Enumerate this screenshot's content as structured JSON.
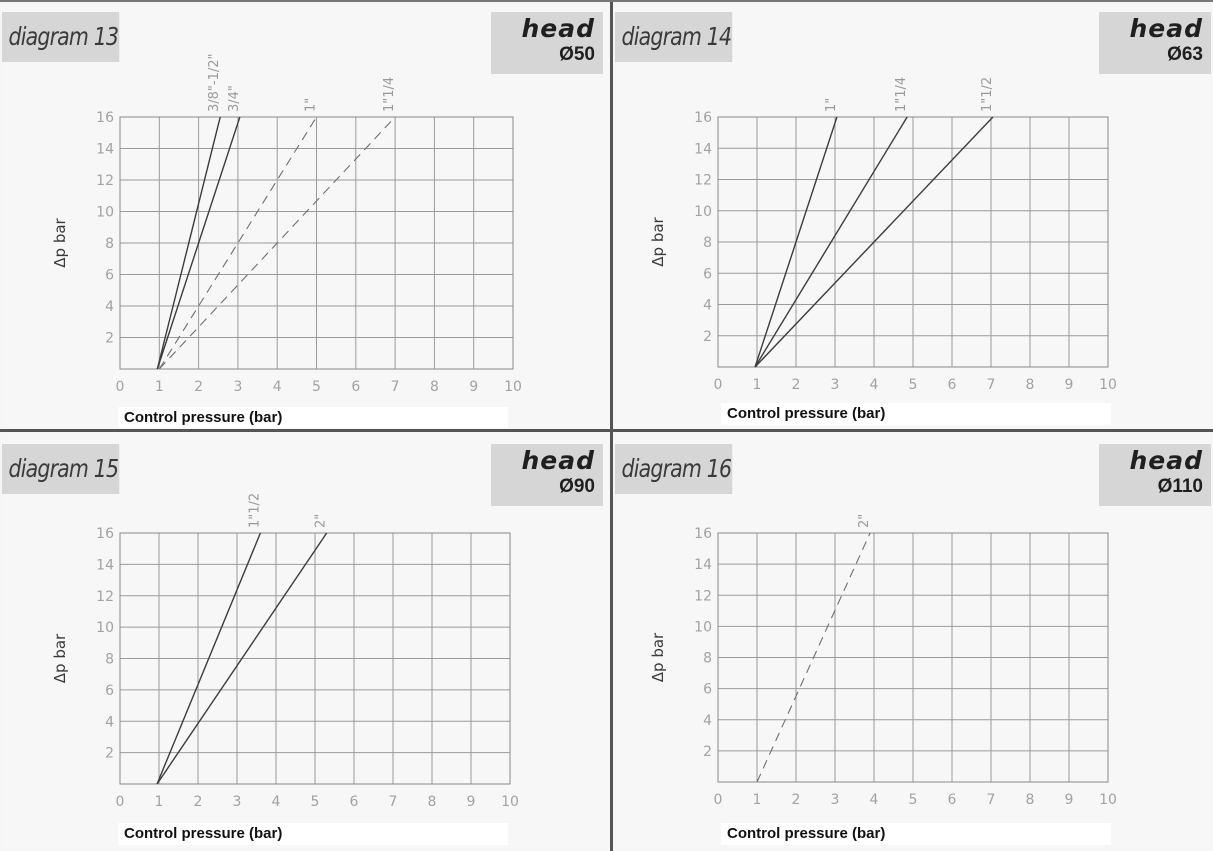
{
  "page": {
    "background": "#f6f6f6"
  },
  "chart_data": [
    {
      "type": "line",
      "title": "diagram 13",
      "badge": {
        "word": "head",
        "size": "Ø50"
      },
      "xlabel": "Control pressure (bar)",
      "ylabel": "Δp bar",
      "xlim": [
        0,
        10
      ],
      "ylim": [
        0,
        16
      ],
      "xticks": [
        "0",
        "1",
        "2",
        "3",
        "4",
        "5",
        "6",
        "7",
        "8",
        "9",
        "10"
      ],
      "yticks": [
        "2",
        "4",
        "6",
        "8",
        "10",
        "12",
        "14",
        "16"
      ],
      "grid": true,
      "series": [
        {
          "name": "3/8\"-1/2\"",
          "style": "solid",
          "x": [
            0.95,
            2.55
          ],
          "y": [
            0,
            16
          ]
        },
        {
          "name": "3/4\"",
          "style": "solid",
          "x": [
            0.95,
            3.05
          ],
          "y": [
            0,
            16
          ]
        },
        {
          "name": "1\"",
          "style": "dashed",
          "x": [
            1.0,
            5.0
          ],
          "y": [
            0,
            16
          ]
        },
        {
          "name": "1\"1/4",
          "style": "dashed",
          "x": [
            1.0,
            7.0
          ],
          "y": [
            0,
            16
          ]
        }
      ]
    },
    {
      "type": "line",
      "title": "diagram 14",
      "badge": {
        "word": "head",
        "size": "Ø63"
      },
      "xlabel": "Control pressure (bar)",
      "ylabel": "Δp bar",
      "xlim": [
        0,
        10
      ],
      "ylim": [
        0,
        16
      ],
      "xticks": [
        "0",
        "1",
        "2",
        "3",
        "4",
        "5",
        "6",
        "7",
        "8",
        "9",
        "10"
      ],
      "yticks": [
        "2",
        "4",
        "6",
        "8",
        "10",
        "12",
        "14",
        "16"
      ],
      "grid": true,
      "series": [
        {
          "name": "1\"",
          "style": "solid",
          "x": [
            0.95,
            3.05
          ],
          "y": [
            0,
            16
          ]
        },
        {
          "name": "1\"1/4",
          "style": "solid",
          "x": [
            0.95,
            4.85
          ],
          "y": [
            0,
            16
          ]
        },
        {
          "name": "1\"1/2",
          "style": "solid",
          "x": [
            0.95,
            7.05
          ],
          "y": [
            0,
            16
          ]
        }
      ]
    },
    {
      "type": "line",
      "title": "diagram 15",
      "badge": {
        "word": "head",
        "size": "Ø90"
      },
      "xlabel": "Control pressure (bar)",
      "ylabel": "Δp bar",
      "xlim": [
        0,
        10
      ],
      "ylim": [
        0,
        16
      ],
      "xticks": [
        "0",
        "1",
        "2",
        "3",
        "4",
        "5",
        "6",
        "7",
        "8",
        "9",
        "10"
      ],
      "yticks": [
        "2",
        "4",
        "6",
        "8",
        "10",
        "12",
        "14",
        "16"
      ],
      "grid": true,
      "series": [
        {
          "name": "1\"1/2",
          "style": "solid",
          "x": [
            0.95,
            3.6
          ],
          "y": [
            0,
            16
          ]
        },
        {
          "name": "2\"",
          "style": "solid",
          "x": [
            0.95,
            5.3
          ],
          "y": [
            0,
            16
          ]
        }
      ]
    },
    {
      "type": "line",
      "title": "diagram 16",
      "badge": {
        "word": "head",
        "size": "Ø110"
      },
      "xlabel": "Control pressure (bar)",
      "ylabel": "Δp bar",
      "xlim": [
        0,
        10
      ],
      "ylim": [
        0,
        16
      ],
      "xticks": [
        "0",
        "1",
        "2",
        "3",
        "4",
        "5",
        "6",
        "7",
        "8",
        "9",
        "10"
      ],
      "yticks": [
        "2",
        "4",
        "6",
        "8",
        "10",
        "12",
        "14",
        "16"
      ],
      "grid": true,
      "series": [
        {
          "name": "2\"",
          "style": "dashed",
          "x": [
            1.0,
            3.9
          ],
          "y": [
            0,
            16
          ]
        }
      ]
    }
  ]
}
